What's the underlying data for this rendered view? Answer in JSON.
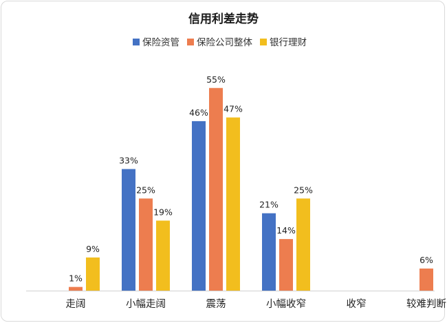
{
  "chart_data": {
    "type": "bar",
    "title": "信用利差走势",
    "categories": [
      "走阔",
      "小幅走阔",
      "震荡",
      "小幅收窄",
      "收窄",
      "较难判断"
    ],
    "series": [
      {
        "name": "保险资管",
        "color": "#4472C4",
        "values": [
          0,
          33,
          46,
          21,
          0,
          0
        ],
        "labels": [
          "",
          "33%",
          "46%",
          "21%",
          "",
          ""
        ]
      },
      {
        "name": "保险公司整体",
        "color": "#ED7D4F",
        "values": [
          1,
          25,
          55,
          14,
          0,
          6
        ],
        "labels": [
          "1%",
          "25%",
          "55%",
          "14%",
          "",
          "6%"
        ]
      },
      {
        "name": "银行理财",
        "color": "#F2BE1E",
        "values": [
          9,
          19,
          47,
          25,
          0,
          0
        ],
        "labels": [
          "9%",
          "19%",
          "47%",
          "25%",
          "",
          ""
        ]
      }
    ],
    "ylim": [
      0,
      55
    ],
    "legend": "top-center",
    "grid": false,
    "xlabel": "",
    "ylabel": ""
  }
}
